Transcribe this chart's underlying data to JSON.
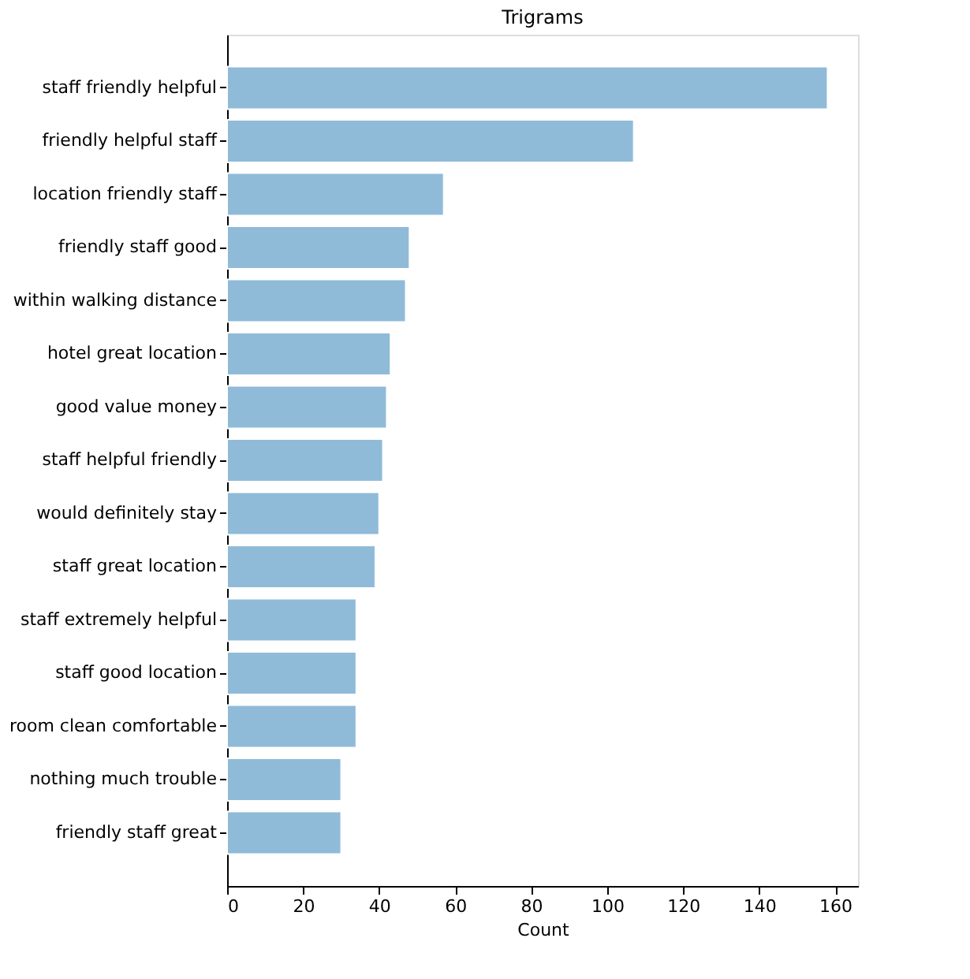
{
  "chart_data": {
    "type": "bar",
    "orientation": "horizontal",
    "title": "Trigrams",
    "xlabel": "Count",
    "categories": [
      "staff friendly helpful",
      "friendly helpful staff",
      "location friendly staff",
      "friendly staff good",
      "within walking distance",
      "hotel great location",
      "good value money",
      "staff helpful friendly",
      "would definitely stay",
      "staff great location",
      "staff extremely helpful",
      "staff good location",
      "room clean comfortable",
      "nothing much trouble",
      "friendly staff great"
    ],
    "values": [
      158,
      107,
      57,
      48,
      47,
      43,
      42,
      41,
      40,
      39,
      34,
      34,
      34,
      30,
      30
    ],
    "color": "#8fbbd9",
    "xlim": [
      0,
      166
    ],
    "xticks": [
      0,
      20,
      40,
      60,
      80,
      100,
      120,
      140,
      160
    ],
    "grid": false
  }
}
